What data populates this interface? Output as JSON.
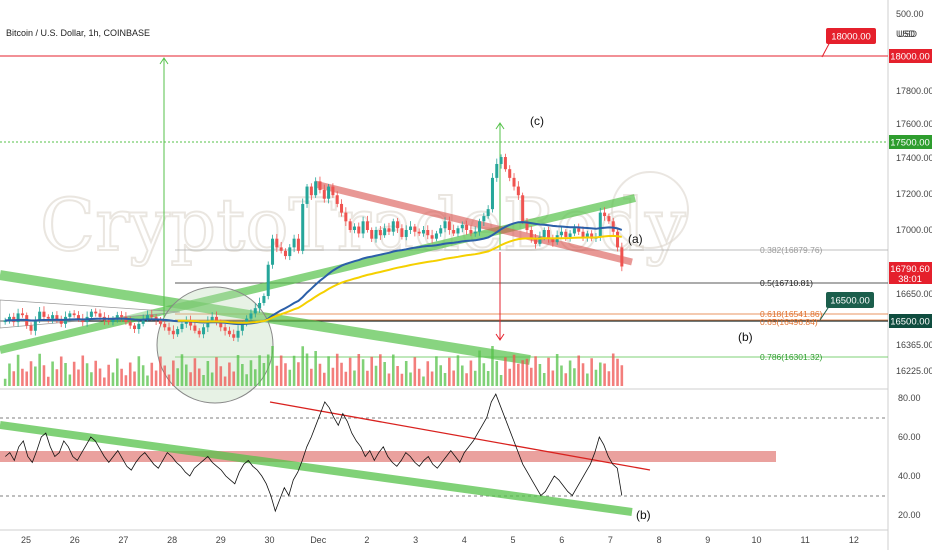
{
  "header": {
    "title": "Bitcoin / U.S. Dollar, 1h, COINBASE",
    "currency": "USD"
  },
  "watermark": "CryptoTradeBody",
  "chart_data": {
    "type": "candlestick",
    "price_axis": {
      "range": [
        16130,
        18400
      ],
      "ticks": [
        "500.00",
        "18000.00",
        "17800.00",
        "17600.00",
        "17400.00",
        "17200.00",
        "17000.00",
        "16650.00",
        "16365.00",
        "16225.00"
      ],
      "tick_values": [
        18430,
        18000,
        17800,
        17600,
        17400,
        17200,
        17000,
        16650,
        16365,
        16225
      ],
      "rows": [
        {
          "label": "500.00",
          "y": 14
        },
        {
          "label": "USD",
          "y": 34
        },
        {
          "label": "17800.00",
          "y": 91
        },
        {
          "label": "17600.00",
          "y": 124
        },
        {
          "label": "17400.00",
          "y": 158
        },
        {
          "label": "17200.00",
          "y": 194
        },
        {
          "label": "17000.00",
          "y": 230
        },
        {
          "label": "16650.00",
          "y": 294
        },
        {
          "label": "16365.00",
          "y": 345
        },
        {
          "label": "16225.00",
          "y": 371
        }
      ]
    },
    "time_axis": {
      "labels": [
        "25",
        "26",
        "27",
        "28",
        "29",
        "30",
        "Dec",
        "2",
        "3",
        "4",
        "5",
        "6",
        "7",
        "8",
        "9",
        "10",
        "11",
        "12"
      ]
    },
    "price_tags": [
      {
        "label": "18000.00",
        "color": "#e5202c"
      },
      {
        "label": "17500.00",
        "color": "#2e9d2e"
      },
      {
        "label": "16790.60",
        "sub": "38:01",
        "color": "#e5202c"
      },
      {
        "label": "16500.00",
        "color": "#0f4d3f"
      }
    ],
    "callouts": [
      {
        "label": "18000.00",
        "color": "#e5202c"
      },
      {
        "label": "16500.00",
        "color": "#1b5e4c"
      }
    ],
    "fib_levels": [
      {
        "label": "0.382(16879.76)",
        "value": 16879.76,
        "color": "#999999"
      },
      {
        "label": "0.5(16710.81)",
        "value": 16710.81,
        "color": "#222222"
      },
      {
        "label": "0.618(16541.86)",
        "value": 16541.86,
        "color": "#e0702c"
      },
      {
        "label": "0.65(16496.84)",
        "value": 16496.84,
        "color": "#e0702c"
      },
      {
        "label": "0.786(16301.32)",
        "value": 16301.32,
        "color": "#2e9d2e"
      }
    ],
    "wave_labels": [
      "(c)",
      "(a)",
      "(b)",
      "(b)"
    ],
    "candles_close": [
      16480,
      16500,
      16470,
      16520,
      16510,
      16450,
      16420,
      16480,
      16530,
      16500,
      16490,
      16510,
      16480,
      16460,
      16500,
      16520,
      16510,
      16490,
      16470,
      16500,
      16530,
      16520,
      16500,
      16480,
      16470,
      16490,
      16510,
      16500,
      16470,
      16450,
      16430,
      16460,
      16490,
      16510,
      16500,
      16480,
      16460,
      16440,
      16420,
      16400,
      16430,
      16460,
      16480,
      16450,
      16420,
      16400,
      16440,
      16480,
      16500,
      16470,
      16440,
      16420,
      16400,
      16380,
      16420,
      16460,
      16490,
      16520,
      16550,
      16580,
      16620,
      16800,
      16950,
      16900,
      16880,
      16850,
      16900,
      16950,
      16880,
      17150,
      17250,
      17200,
      17280,
      17230,
      17180,
      17250,
      17200,
      17150,
      17100,
      17050,
      17000,
      17020,
      16980,
      17050,
      17000,
      16950,
      17000,
      16970,
      17010,
      16990,
      17050,
      17010,
      16960,
      17000,
      17020,
      16990,
      16980,
      17000,
      16970,
      16950,
      16980,
      17010,
      17050,
      17000,
      16980,
      17010,
      17030,
      17000,
      16980,
      16990,
      17050,
      17080,
      17120,
      17300,
      17380,
      17420,
      17350,
      17300,
      17250,
      17200,
      17050,
      17000,
      16950,
      16920,
      16960,
      17000,
      16950,
      16930,
      16970,
      16990,
      16960,
      16980,
      17010,
      16990,
      16960,
      16980,
      16950,
      16960,
      17100,
      17080,
      17050,
      16990,
      16900,
      16790
    ],
    "indicator_axis": {
      "range": [
        15,
        85
      ],
      "ticks": [
        "80.00",
        "60.00",
        "40.00",
        "20.00"
      ],
      "tick_values": [
        80,
        60,
        40,
        20
      ]
    },
    "rsi_values": [
      50,
      52,
      48,
      55,
      58,
      50,
      47,
      53,
      60,
      62,
      55,
      50,
      52,
      58,
      55,
      50,
      48,
      52,
      56,
      60,
      58,
      54,
      50,
      47,
      50,
      53,
      49,
      45,
      43,
      47,
      50,
      52,
      49,
      46,
      44,
      48,
      52,
      50,
      47,
      45,
      42,
      40,
      44,
      46,
      48,
      50,
      47,
      45,
      43,
      40,
      38,
      36,
      42,
      46,
      48,
      45,
      43,
      40,
      36,
      30,
      22,
      28,
      34,
      30,
      38,
      42,
      48,
      55,
      60,
      66,
      72,
      78,
      75,
      70,
      66,
      72,
      68,
      62,
      58,
      55,
      50,
      53,
      48,
      52,
      55,
      50,
      47,
      45,
      48,
      52,
      50,
      47,
      45,
      48,
      50,
      46,
      44,
      47,
      50,
      53,
      50,
      47,
      52,
      55,
      58,
      62,
      66,
      70,
      78,
      82,
      76,
      70,
      64,
      58,
      52,
      46,
      42,
      38,
      34,
      30,
      32,
      36,
      40,
      38,
      35,
      32,
      30,
      34,
      38,
      42,
      46,
      52,
      60,
      56,
      50,
      46,
      44,
      30
    ]
  },
  "colors": {
    "bull": "#26a69a",
    "bear": "#ef5350",
    "ma_blue": "#2b5fa8",
    "ma_yellow": "#f5d000",
    "trend_green": "#55c24a",
    "trend_red": "#d9534f",
    "rsi_line": "#111111"
  }
}
